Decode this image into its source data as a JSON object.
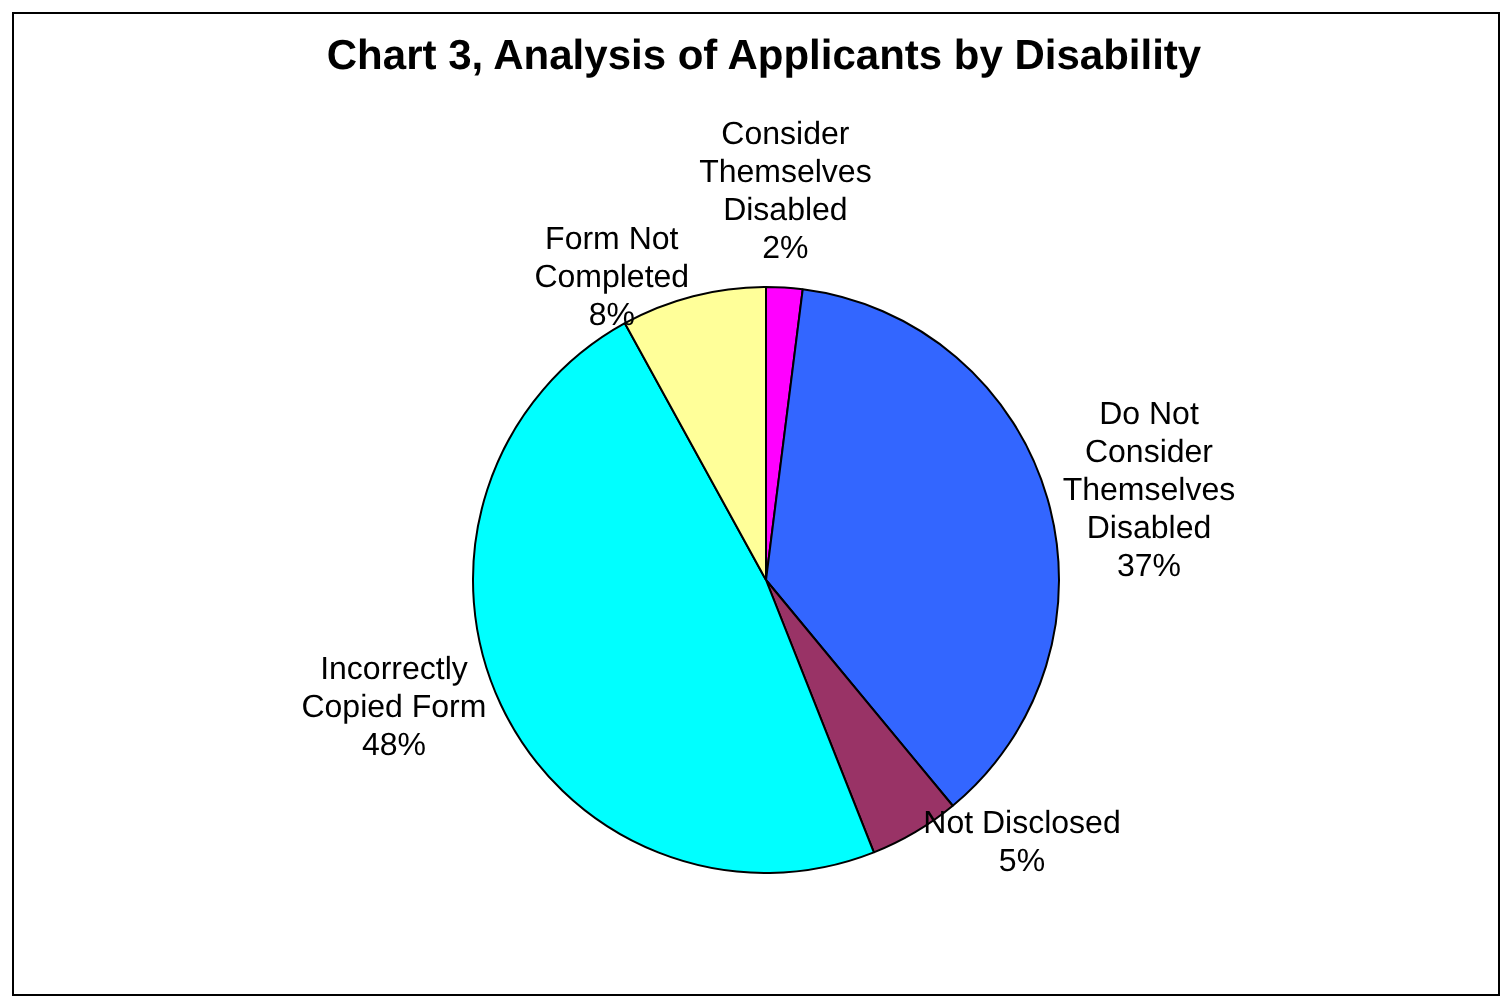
{
  "chart_data": {
    "type": "pie",
    "title": "Chart 3, Analysis of Applicants by Disability",
    "categories": [
      "Consider\nThemselves\nDisabled",
      "Do Not\nConsider\nThemselves\nDisabled",
      "Not Disclosed",
      "Incorrectly\nCopied Form",
      "Form Not\nCompleted"
    ],
    "values": [
      2,
      37,
      5,
      48,
      8
    ],
    "value_labels": [
      "2%",
      "37%",
      "5%",
      "48%",
      "8%"
    ],
    "colors": [
      "#ff00ff",
      "#3366ff",
      "#993366",
      "#00ffff",
      "#ffff99"
    ],
    "legend": false
  }
}
